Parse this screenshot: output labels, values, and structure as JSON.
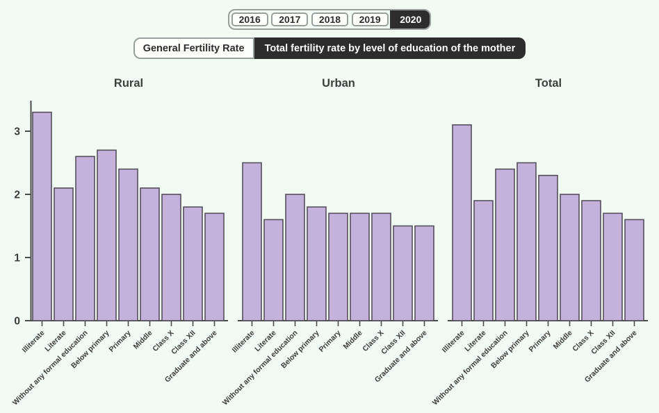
{
  "colors": {
    "background": "#f1faf3",
    "bar_fill": "#c4b1dc",
    "bar_stroke": "#544f5a",
    "axis": "#4b4b4b",
    "label_text": "#3c3c3c",
    "title_text": "#3a403d",
    "active_bg": "#2d2d2d",
    "active_text": "#ffffff",
    "inactive_bg": "#fdfffd",
    "control_border": "#97a09c"
  },
  "year_tabs": {
    "options": [
      "2016",
      "2017",
      "2018",
      "2019",
      "2020"
    ],
    "active": "2020"
  },
  "metric_toggle": {
    "options": [
      "General Fertility Rate",
      "Total fertility rate by level of education of the mother"
    ],
    "active": "Total fertility rate by level of education of the mother"
  },
  "chart_data": [
    {
      "type": "bar",
      "title": "Rural",
      "categories": [
        "Illiterate",
        "Literate",
        "Without any formal education",
        "Below primary",
        "Primary",
        "Middle",
        "Class X",
        "Class XII",
        "Graduate and above"
      ],
      "values": [
        3.3,
        2.1,
        2.6,
        2.7,
        2.4,
        2.1,
        2.0,
        1.8,
        1.7
      ],
      "xlabel": "",
      "ylabel": "",
      "ylim": [
        0,
        3.5
      ],
      "yticks": [
        0,
        1,
        2,
        3
      ],
      "grid": false,
      "y_axis_visible": true
    },
    {
      "type": "bar",
      "title": "Urban",
      "categories": [
        "Illiterate",
        "Literate",
        "Without any formal education",
        "Below primary",
        "Primary",
        "Middle",
        "Class X",
        "Class XII",
        "Graduate and above"
      ],
      "values": [
        2.5,
        1.6,
        2.0,
        1.8,
        1.7,
        1.7,
        1.7,
        1.5,
        1.5
      ],
      "xlabel": "",
      "ylabel": "",
      "ylim": [
        0,
        3.5
      ],
      "yticks": [
        0,
        1,
        2,
        3
      ],
      "grid": false,
      "y_axis_visible": false
    },
    {
      "type": "bar",
      "title": "Total",
      "categories": [
        "Illiterate",
        "Literate",
        "Without any formal education",
        "Below primary",
        "Primary",
        "Middle",
        "Class X",
        "Class XII",
        "Graduate and above"
      ],
      "values": [
        3.1,
        1.9,
        2.4,
        2.5,
        2.3,
        2.0,
        1.9,
        1.7,
        1.6
      ],
      "xlabel": "",
      "ylabel": "",
      "ylim": [
        0,
        3.5
      ],
      "yticks": [
        0,
        1,
        2,
        3
      ],
      "grid": false,
      "y_axis_visible": false
    }
  ]
}
